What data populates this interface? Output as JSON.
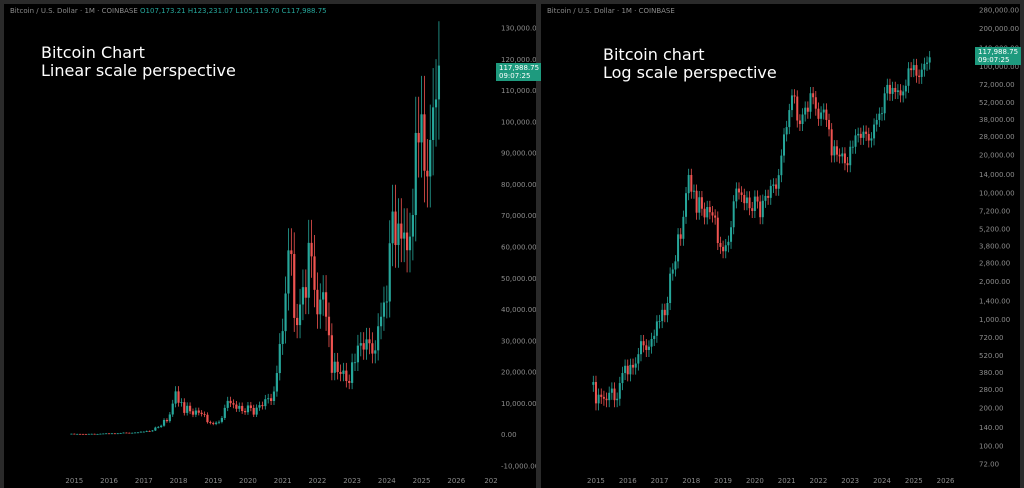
{
  "colors": {
    "up": "#26a69a",
    "down": "#ef5350",
    "bg": "#000000",
    "text": "#8c8c8c",
    "badge": "#1e9a7e"
  },
  "header": {
    "symbol": "Bitcoin / U.S. Dollar · 1M · COINBASE",
    "open": "O107,173.21",
    "high": "H123,231.07",
    "low": "L105,119.70",
    "close": "C117,988.75"
  },
  "right_header": {
    "symbol": "Bitcoin / U.S. Dollar · 1M · COINBASE"
  },
  "badge": {
    "price": "117,988.75",
    "countdown": "09:07:25"
  },
  "chart_data": [
    {
      "type": "candlestick",
      "title": "Bitcoin Chart",
      "subtitle": "Linear scale perspective",
      "scale": "linear",
      "ylim": [
        -10000,
        130000
      ],
      "y_ticks": [
        "130,000.00",
        "120,000.00",
        "110,000.00",
        "100,000.00",
        "90,000.00",
        "80,000.00",
        "70,000.00",
        "60,000.00",
        "50,000.00",
        "40,000.00",
        "30,000.00",
        "20,000.00",
        "10,000.00",
        "0.00",
        "-10,000.00"
      ],
      "x_ticks": [
        "2015",
        "2016",
        "2017",
        "2018",
        "2019",
        "2020",
        "2021",
        "2022",
        "2023",
        "2024",
        "2025",
        "2026",
        "202"
      ],
      "last_price": 117988.75
    },
    {
      "type": "candlestick",
      "title": "Bitcoin chart",
      "subtitle": "Log scale perspective",
      "scale": "log",
      "ylim": [
        60,
        300000
      ],
      "y_ticks": [
        "280,000.00",
        "200,000.00",
        "140,000.00",
        "100,000.00",
        "72,000.00",
        "52,000.00",
        "38,000.00",
        "28,000.00",
        "20,000.00",
        "14,000.00",
        "10,000.00",
        "7,200.00",
        "5,200.00",
        "3,800.00",
        "2,800.00",
        "2,000.00",
        "1,400.00",
        "1,000.00",
        "720.00",
        "520.00",
        "380.00",
        "280.00",
        "200.00",
        "140.00",
        "100.00",
        "72.00"
      ],
      "x_ticks": [
        "2015",
        "2016",
        "2017",
        "2018",
        "2019",
        "2020",
        "2021",
        "2022",
        "2023",
        "2024",
        "2025",
        "2026"
      ],
      "last_price": 117988.75
    }
  ],
  "monthly_closes": [
    [
      "2014-12",
      320
    ],
    [
      "2015-01",
      217
    ],
    [
      "2015-02",
      254
    ],
    [
      "2015-03",
      244
    ],
    [
      "2015-04",
      236
    ],
    [
      "2015-05",
      230
    ],
    [
      "2015-06",
      263
    ],
    [
      "2015-07",
      284
    ],
    [
      "2015-08",
      230
    ],
    [
      "2015-09",
      236
    ],
    [
      "2015-10",
      314
    ],
    [
      "2015-11",
      377
    ],
    [
      "2015-12",
      430
    ],
    [
      "2016-01",
      368
    ],
    [
      "2016-02",
      437
    ],
    [
      "2016-03",
      416
    ],
    [
      "2016-04",
      448
    ],
    [
      "2016-05",
      531
    ],
    [
      "2016-06",
      673
    ],
    [
      "2016-07",
      624
    ],
    [
      "2016-08",
      573
    ],
    [
      "2016-09",
      609
    ],
    [
      "2016-10",
      700
    ],
    [
      "2016-11",
      742
    ],
    [
      "2016-12",
      964
    ],
    [
      "2017-01",
      970
    ],
    [
      "2017-02",
      1190
    ],
    [
      "2017-03",
      1080
    ],
    [
      "2017-04",
      1348
    ],
    [
      "2017-05",
      2300
    ],
    [
      "2017-06",
      2480
    ],
    [
      "2017-07",
      2875
    ],
    [
      "2017-08",
      4703
    ],
    [
      "2017-09",
      4338
    ],
    [
      "2017-10",
      6468
    ],
    [
      "2017-11",
      9946
    ],
    [
      "2017-12",
      13850
    ],
    [
      "2018-01",
      10221
    ],
    [
      "2018-02",
      10397
    ],
    [
      "2018-03",
      6973
    ],
    [
      "2018-04",
      9240
    ],
    [
      "2018-05",
      7494
    ],
    [
      "2018-06",
      6404
    ],
    [
      "2018-07",
      7730
    ],
    [
      "2018-08",
      7033
    ],
    [
      "2018-09",
      6625
    ],
    [
      "2018-10",
      6371
    ],
    [
      "2018-11",
      4017
    ],
    [
      "2018-12",
      3742
    ],
    [
      "2019-01",
      3457
    ],
    [
      "2019-02",
      3854
    ],
    [
      "2019-03",
      4105
    ],
    [
      "2019-04",
      5350
    ],
    [
      "2019-05",
      8574
    ],
    [
      "2019-06",
      10817
    ],
    [
      "2019-07",
      10085
    ],
    [
      "2019-08",
      9630
    ],
    [
      "2019-09",
      8293
    ],
    [
      "2019-10",
      9199
    ],
    [
      "2019-11",
      7569
    ],
    [
      "2019-12",
      7193
    ],
    [
      "2020-01",
      9350
    ],
    [
      "2020-02",
      8544
    ],
    [
      "2020-03",
      6424
    ],
    [
      "2020-04",
      8658
    ],
    [
      "2020-05",
      9461
    ],
    [
      "2020-06",
      9138
    ],
    [
      "2020-07",
      11351
    ],
    [
      "2020-08",
      11655
    ],
    [
      "2020-09",
      10779
    ],
    [
      "2020-10",
      13805
    ],
    [
      "2020-11",
      19713
    ],
    [
      "2020-12",
      28990
    ],
    [
      "2021-01",
      33114
    ],
    [
      "2021-02",
      45137
    ],
    [
      "2021-03",
      58918
    ],
    [
      "2021-04",
      57750
    ],
    [
      "2021-05",
      37332
    ],
    [
      "2021-06",
      35041
    ],
    [
      "2021-07",
      41626
    ],
    [
      "2021-08",
      47167
    ],
    [
      "2021-09",
      43790
    ],
    [
      "2021-10",
      61319
    ],
    [
      "2021-11",
      57005
    ],
    [
      "2021-12",
      46306
    ],
    [
      "2022-01",
      38483
    ],
    [
      "2022-02",
      43193
    ],
    [
      "2022-03",
      45538
    ],
    [
      "2022-04",
      37715
    ],
    [
      "2022-05",
      31792
    ],
    [
      "2022-06",
      19785
    ],
    [
      "2022-07",
      23337
    ],
    [
      "2022-08",
      20050
    ],
    [
      "2022-09",
      19431
    ],
    [
      "2022-10",
      20495
    ],
    [
      "2022-11",
      17168
    ],
    [
      "2022-12",
      16548
    ],
    [
      "2023-01",
      23139
    ],
    [
      "2023-02",
      23147
    ],
    [
      "2023-03",
      28478
    ],
    [
      "2023-04",
      29268
    ],
    [
      "2023-05",
      27219
    ],
    [
      "2023-06",
      30477
    ],
    [
      "2023-07",
      29230
    ],
    [
      "2023-08",
      25931
    ],
    [
      "2023-09",
      26967
    ],
    [
      "2023-10",
      34667
    ],
    [
      "2023-11",
      37712
    ],
    [
      "2023-12",
      42265
    ],
    [
      "2024-01",
      42582
    ],
    [
      "2024-02",
      61198
    ],
    [
      "2024-03",
      71333
    ],
    [
      "2024-04",
      60636
    ],
    [
      "2024-05",
      67491
    ],
    [
      "2024-06",
      62678
    ],
    [
      "2024-07",
      64620
    ],
    [
      "2024-08",
      58969
    ],
    [
      "2024-09",
      63329
    ],
    [
      "2024-10",
      70215
    ],
    [
      "2024-11",
      96449
    ],
    [
      "2024-12",
      93429
    ],
    [
      "2025-01",
      102405
    ],
    [
      "2025-02",
      84373
    ],
    [
      "2025-03",
      82548
    ],
    [
      "2025-04",
      94207
    ],
    [
      "2025-05",
      104638
    ],
    [
      "2025-06",
      107173
    ],
    [
      "2025-07",
      117988.75
    ]
  ]
}
